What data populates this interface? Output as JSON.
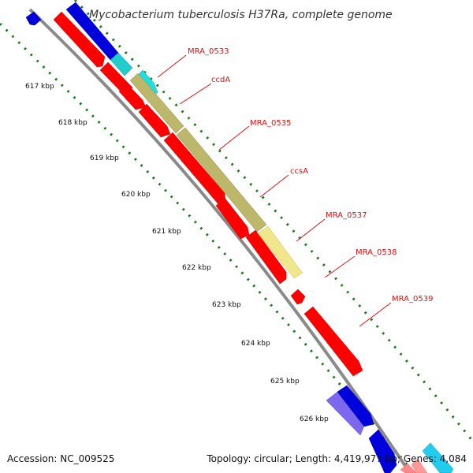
{
  "title": "Mycobacterium tuberculosis H37Ra, complete genome",
  "footer": {
    "accession": "Accession: NC_009525",
    "summary": "Topology: circular; Length: 4,419,977 bp; Genes: 4,084"
  },
  "colors": {
    "background": "#ffffff",
    "backbone": "#8a8a8a",
    "gc_ticks": "#1a7a1a",
    "label_text": "#dd1111",
    "gene_red": "#ff0000",
    "gene_blue": "#0000dd",
    "gene_cyan": "#22cccc",
    "gene_olive": "#bdb76b",
    "gene_lightyellow": "#f0e68c",
    "gene_violet": "#7b68ee"
  },
  "ticks": [
    {
      "label": "617 kbp"
    },
    {
      "label": "618 kbp"
    },
    {
      "label": "619 kbp"
    },
    {
      "label": "620 kbp"
    },
    {
      "label": "621 kbp"
    },
    {
      "label": "622 kbp"
    },
    {
      "label": "623 kbp"
    },
    {
      "label": "624 kbp"
    },
    {
      "label": "625 kbp"
    },
    {
      "label": "626 kbp"
    }
  ],
  "gene_labels": [
    {
      "name": "MRA_0533"
    },
    {
      "name": "ccdA"
    },
    {
      "name": "MRA_0535"
    },
    {
      "name": "ccsA"
    },
    {
      "name": "MRA_0537"
    },
    {
      "name": "MRA_0538"
    },
    {
      "name": "MRA_0539"
    }
  ]
}
